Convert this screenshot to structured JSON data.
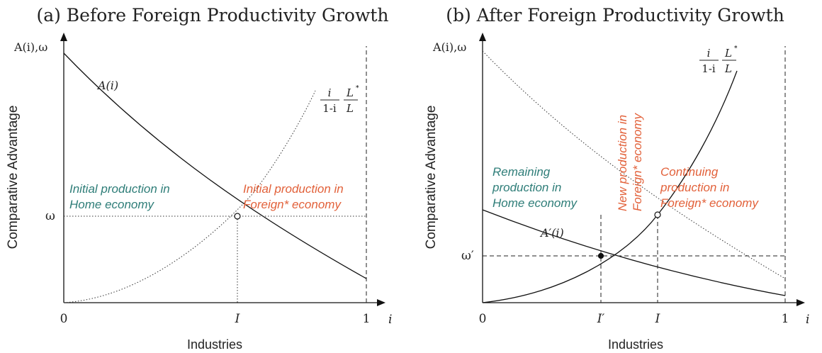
{
  "panel_a": {
    "title": "(a) Before Foreign Productivity Growth",
    "y_axis_label": "A(i),ω",
    "y_axis_title": "Comparative Advantage",
    "x_axis_title": "Industries",
    "x_var": "i",
    "ticks": {
      "zero": "0",
      "one": "1",
      "I": "I",
      "omega": "ω"
    },
    "curve_A_label": "A(i)",
    "curve_ratio_label": {
      "num": "i",
      "den": "1-i",
      "L_num": "L",
      "L_den": "L",
      "star": "*"
    },
    "home_text": [
      "Initial production in",
      "Home economy"
    ],
    "foreign_text": [
      "Initial production in",
      "Foreign* economy"
    ]
  },
  "panel_b": {
    "title": "(b) After Foreign Productivity Growth",
    "y_axis_label": "A(i),ω",
    "y_axis_title": "Comparative Advantage",
    "x_axis_title": "Industries",
    "x_var": "i",
    "ticks": {
      "zero": "0",
      "one": "1",
      "I": "I",
      "I_prime": "I′",
      "omega_prime": "ω′"
    },
    "curve_A_label": "A′(i)",
    "curve_ratio_label": {
      "num": "i",
      "den": "1-i",
      "L_num": "L",
      "L_den": "L",
      "star": "*"
    },
    "home_text": [
      "Remaining",
      "production in",
      "Home economy"
    ],
    "new_text": [
      "New production in",
      "Foreign* economy"
    ],
    "foreign_text": [
      "Continuing",
      "production in",
      "Foreign* economy"
    ]
  }
}
